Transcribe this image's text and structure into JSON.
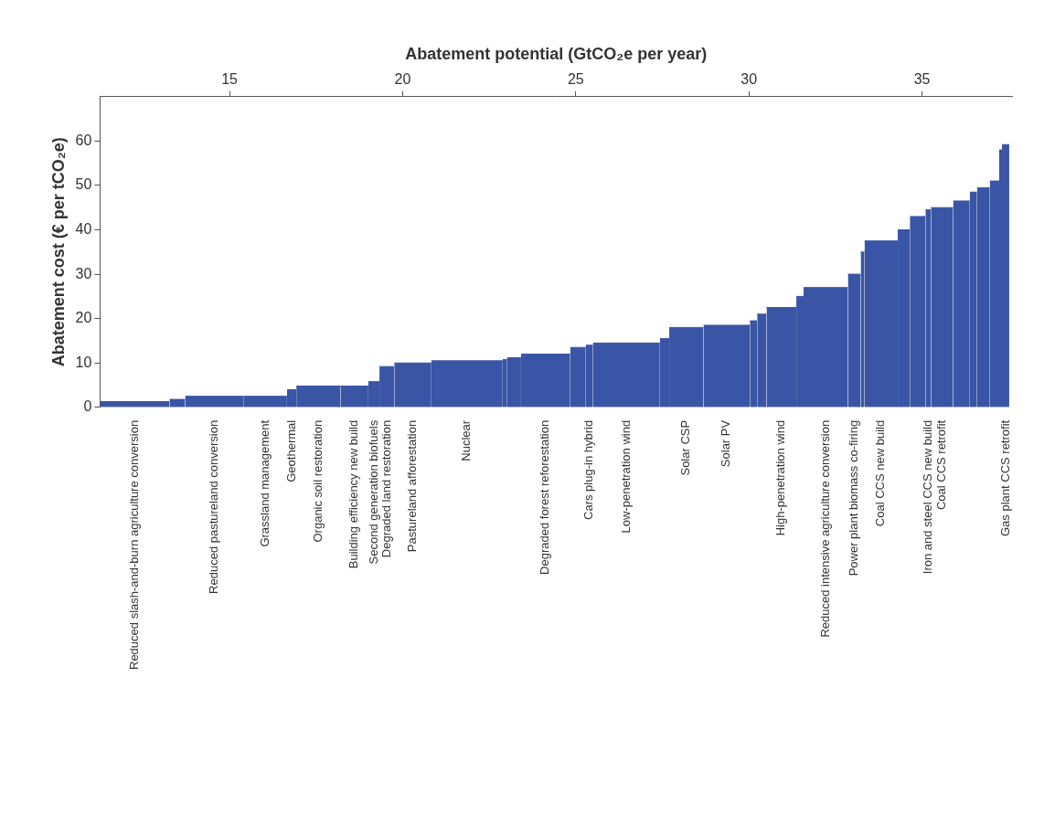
{
  "chart_data": {
    "type": "bar",
    "x_label": "Abatement potential (GtCO₂e per year)",
    "y_label": "Abatement cost (€ per tCO₂e)",
    "categories": [
      "Reduced slash-and-burn agriculture conversion",
      null,
      "Reduced pastureland conversion",
      "Grassland management",
      "Geothermal",
      "Organic soil restoration",
      "Building efficiency new build",
      "Second generation biofuels",
      "Degraded land restoration",
      "Pastureland afforestation",
      "Nuclear",
      null,
      null,
      "Degraded forest reforestation",
      null,
      "Cars plug-in hybrid",
      "Low-penetration wind",
      null,
      "Solar CSP",
      "Solar PV",
      null,
      null,
      "High-penetration wind",
      null,
      "Reduced intensive agriculture conversion",
      "Power plant biomass co-firing",
      null,
      "Coal CCS new build",
      null,
      null,
      "Iron and steel CCS new build",
      "Coal CCS retrofit",
      null,
      null,
      null,
      null,
      null,
      "Gas plant CCS retrofit"
    ],
    "values": [
      1.3,
      1.8,
      2.5,
      2.5,
      4.0,
      4.8,
      4.8,
      5.8,
      9.2,
      10.0,
      10.5,
      10.8,
      11.2,
      12.0,
      13.5,
      14.0,
      14.5,
      15.5,
      18.0,
      18.5,
      19.5,
      21.0,
      22.5,
      25.0,
      27.0,
      30.0,
      35.0,
      37.5,
      40.0,
      43.0,
      44.5,
      45.0,
      46.5,
      48.5,
      49.5,
      51.0,
      58.0,
      59.2
    ],
    "potential": [
      2.01,
      0.45,
      1.68,
      1.26,
      0.27,
      1.28,
      0.8,
      0.32,
      0.43,
      1.07,
      2.06,
      0.13,
      0.4,
      1.42,
      0.45,
      0.21,
      1.93,
      0.27,
      0.99,
      1.34,
      0.21,
      0.27,
      0.86,
      0.21,
      1.28,
      0.37,
      0.11,
      0.96,
      0.35,
      0.45,
      0.16,
      0.64,
      0.48,
      0.21,
      0.37,
      0.27,
      0.08,
      0.21
    ],
    "color": "#3a55a5",
    "xlim": [
      11.26,
      37.6
    ],
    "xticks": [
      15,
      20,
      25,
      30,
      35
    ],
    "ylim": [
      0,
      70
    ],
    "yticks": [
      0,
      10,
      20,
      30,
      40,
      50,
      60
    ],
    "grid": false
  }
}
